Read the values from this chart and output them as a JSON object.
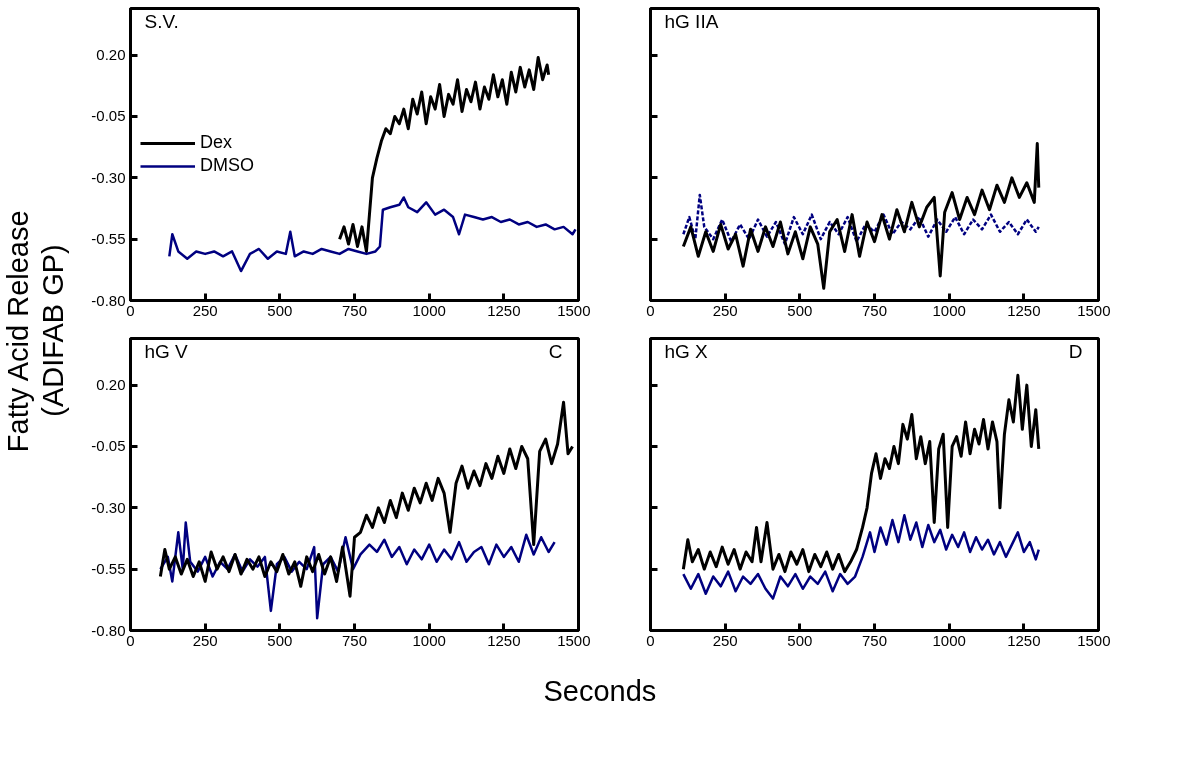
{
  "chart_data": [
    {
      "type": "line",
      "ylabel": "Fatty Acid Release\n(ADIFAB GP)",
      "annotations": [
        "S.V."
      ],
      "legend": "left",
      "grid": false,
      "marker": "none",
      "line_style": "solid",
      "xlim": [
        0,
        1500
      ],
      "xticks": [
        0,
        250,
        500,
        750,
        1000,
        1250,
        1500
      ],
      "ylim": [
        -0.8,
        0.39
      ],
      "yticks": [
        {
          "value": -0.8,
          "label": "-0.80"
        },
        {
          "value": -0.55,
          "label": "-0.55"
        },
        {
          "value": -0.3,
          "label": "-0.30"
        },
        {
          "value": -0.05,
          "label": "-0.05"
        },
        {
          "value": 0.2,
          "label": "0.20"
        }
      ],
      "series": [
        {
          "name": "Dex",
          "color": "#000000",
          "x": [
            700,
            715,
            730,
            745,
            760,
            775,
            790,
            800,
            810,
            825,
            840,
            855,
            870,
            885,
            900,
            915,
            930,
            945,
            960,
            975,
            990,
            1005,
            1020,
            1035,
            1050,
            1065,
            1080,
            1095,
            1110,
            1125,
            1140,
            1155,
            1170,
            1185,
            1200,
            1215,
            1230,
            1245,
            1260,
            1275,
            1290,
            1305,
            1320,
            1335,
            1350,
            1365,
            1380,
            1395,
            1400
          ],
          "values": [
            -0.55,
            -0.5,
            -0.57,
            -0.49,
            -0.58,
            -0.5,
            -0.6,
            -0.45,
            -0.3,
            -0.22,
            -0.15,
            -0.1,
            -0.12,
            -0.05,
            -0.08,
            -0.02,
            -0.1,
            0.02,
            -0.04,
            0.05,
            -0.08,
            0.03,
            -0.02,
            0.08,
            -0.05,
            0.04,
            0.0,
            0.1,
            -0.03,
            0.06,
            0.01,
            0.09,
            -0.02,
            0.07,
            0.02,
            0.12,
            0.03,
            0.1,
            0.0,
            0.13,
            0.05,
            0.15,
            0.07,
            0.14,
            0.06,
            0.19,
            0.1,
            0.16,
            0.12
          ]
        },
        {
          "name": "DMSO",
          "color": "#000080",
          "x": [
            130,
            140,
            160,
            190,
            220,
            250,
            280,
            310,
            340,
            370,
            400,
            430,
            460,
            490,
            520,
            535,
            550,
            580,
            610,
            640,
            670,
            700,
            730,
            760,
            790,
            820,
            835,
            845,
            870,
            900,
            915,
            930,
            960,
            990,
            1020,
            1050,
            1080,
            1100,
            1120,
            1150,
            1180,
            1210,
            1240,
            1270,
            1300,
            1330,
            1360,
            1390,
            1420,
            1450,
            1480,
            1490
          ],
          "values": [
            -0.62,
            -0.53,
            -0.6,
            -0.63,
            -0.6,
            -0.61,
            -0.6,
            -0.62,
            -0.6,
            -0.68,
            -0.61,
            -0.59,
            -0.63,
            -0.6,
            -0.61,
            -0.52,
            -0.62,
            -0.6,
            -0.61,
            -0.59,
            -0.6,
            -0.61,
            -0.59,
            -0.6,
            -0.61,
            -0.6,
            -0.58,
            -0.43,
            -0.42,
            -0.41,
            -0.38,
            -0.42,
            -0.44,
            -0.4,
            -0.45,
            -0.43,
            -0.46,
            -0.53,
            -0.45,
            -0.46,
            -0.47,
            -0.46,
            -0.48,
            -0.47,
            -0.49,
            -0.48,
            -0.5,
            -0.49,
            -0.51,
            -0.5,
            -0.53,
            -0.51
          ]
        }
      ]
    },
    {
      "type": "line",
      "annotations": [
        "hG IIA"
      ],
      "grid": false,
      "marker": "none",
      "tick_labels": "x",
      "xlim": [
        0,
        1500
      ],
      "xticks": [
        0,
        250,
        500,
        750,
        1000,
        1250,
        1500
      ],
      "ylim": [
        -0.8,
        0.39
      ],
      "yticks": [
        {
          "value": -0.8,
          "label": null
        },
        {
          "value": -0.55,
          "label": null
        },
        {
          "value": -0.3,
          "label": null
        },
        {
          "value": -0.05,
          "label": null
        },
        {
          "value": 0.2,
          "label": null
        }
      ],
      "series": [
        {
          "color": "#000080",
          "line_style": "dashed",
          "x": [
            110,
            130,
            150,
            165,
            180,
            210,
            240,
            270,
            300,
            330,
            360,
            390,
            420,
            450,
            480,
            510,
            540,
            570,
            600,
            630,
            660,
            690,
            720,
            750,
            780,
            810,
            840,
            870,
            900,
            930,
            960,
            990,
            1020,
            1050,
            1080,
            1110,
            1140,
            1170,
            1200,
            1230,
            1260,
            1290,
            1300
          ],
          "values": [
            -0.53,
            -0.46,
            -0.55,
            -0.37,
            -0.5,
            -0.55,
            -0.47,
            -0.56,
            -0.49,
            -0.55,
            -0.47,
            -0.54,
            -0.48,
            -0.57,
            -0.46,
            -0.53,
            -0.45,
            -0.55,
            -0.48,
            -0.53,
            -0.46,
            -0.56,
            -0.49,
            -0.52,
            -0.45,
            -0.53,
            -0.48,
            -0.51,
            -0.46,
            -0.54,
            -0.47,
            -0.52,
            -0.46,
            -0.53,
            -0.47,
            -0.51,
            -0.45,
            -0.52,
            -0.48,
            -0.53,
            -0.47,
            -0.52,
            -0.5
          ]
        },
        {
          "color": "#000000",
          "line_style": "solid",
          "x": [
            110,
            135,
            160,
            185,
            210,
            235,
            260,
            285,
            310,
            335,
            360,
            385,
            410,
            435,
            460,
            485,
            510,
            535,
            560,
            580,
            600,
            625,
            650,
            675,
            700,
            725,
            750,
            775,
            800,
            825,
            850,
            875,
            900,
            925,
            950,
            970,
            985,
            1010,
            1035,
            1060,
            1085,
            1110,
            1135,
            1160,
            1185,
            1210,
            1235,
            1260,
            1285,
            1295,
            1300
          ],
          "values": [
            -0.58,
            -0.5,
            -0.62,
            -0.52,
            -0.6,
            -0.49,
            -0.59,
            -0.53,
            -0.66,
            -0.51,
            -0.6,
            -0.5,
            -0.58,
            -0.48,
            -0.61,
            -0.52,
            -0.63,
            -0.5,
            -0.57,
            -0.75,
            -0.52,
            -0.47,
            -0.6,
            -0.45,
            -0.62,
            -0.48,
            -0.56,
            -0.45,
            -0.55,
            -0.43,
            -0.52,
            -0.4,
            -0.5,
            -0.42,
            -0.38,
            -0.7,
            -0.44,
            -0.36,
            -0.47,
            -0.38,
            -0.45,
            -0.35,
            -0.43,
            -0.33,
            -0.4,
            -0.3,
            -0.38,
            -0.32,
            -0.4,
            -0.16,
            -0.34
          ]
        }
      ]
    },
    {
      "type": "line",
      "xlabel": "Seconds",
      "annotations": [
        "hG  V",
        "C"
      ],
      "grid": false,
      "marker": "none",
      "line_style": "solid",
      "xlim": [
        0,
        1500
      ],
      "xticks": [
        0,
        250,
        500,
        750,
        1000,
        1250,
        1500
      ],
      "ylim": [
        -0.8,
        0.39
      ],
      "yticks": [
        {
          "value": -0.8,
          "label": "-0.80"
        },
        {
          "value": -0.55,
          "label": "-0.55"
        },
        {
          "value": -0.3,
          "label": "-0.30"
        },
        {
          "value": -0.05,
          "label": "-0.05"
        },
        {
          "value": 0.2,
          "label": "0.20"
        }
      ],
      "series": [
        {
          "color": "#000080",
          "x": [
            100,
            125,
            140,
            160,
            175,
            185,
            200,
            225,
            250,
            275,
            300,
            325,
            350,
            375,
            400,
            425,
            450,
            470,
            490,
            515,
            540,
            565,
            590,
            615,
            625,
            645,
            670,
            695,
            720,
            745,
            770,
            800,
            825,
            850,
            875,
            900,
            925,
            950,
            975,
            1000,
            1025,
            1050,
            1075,
            1100,
            1125,
            1150,
            1175,
            1200,
            1225,
            1250,
            1275,
            1300,
            1325,
            1350,
            1375,
            1400,
            1420
          ],
          "values": [
            -0.55,
            -0.5,
            -0.6,
            -0.4,
            -0.55,
            -0.36,
            -0.52,
            -0.56,
            -0.5,
            -0.58,
            -0.52,
            -0.55,
            -0.49,
            -0.56,
            -0.51,
            -0.54,
            -0.5,
            -0.72,
            -0.53,
            -0.5,
            -0.56,
            -0.52,
            -0.55,
            -0.46,
            -0.75,
            -0.53,
            -0.5,
            -0.56,
            -0.42,
            -0.55,
            -0.49,
            -0.45,
            -0.48,
            -0.43,
            -0.5,
            -0.46,
            -0.53,
            -0.47,
            -0.51,
            -0.45,
            -0.52,
            -0.47,
            -0.51,
            -0.44,
            -0.52,
            -0.48,
            -0.46,
            -0.53,
            -0.45,
            -0.5,
            -0.46,
            -0.52,
            -0.41,
            -0.49,
            -0.42,
            -0.48,
            -0.44
          ]
        },
        {
          "color": "#000000",
          "x": [
            100,
            115,
            130,
            150,
            170,
            190,
            210,
            230,
            250,
            270,
            290,
            310,
            330,
            350,
            370,
            390,
            410,
            430,
            450,
            470,
            490,
            510,
            530,
            550,
            570,
            590,
            610,
            630,
            650,
            670,
            690,
            710,
            735,
            750,
            770,
            790,
            810,
            830,
            850,
            870,
            890,
            910,
            930,
            950,
            970,
            990,
            1010,
            1030,
            1050,
            1070,
            1090,
            1110,
            1130,
            1150,
            1170,
            1190,
            1210,
            1230,
            1250,
            1270,
            1290,
            1310,
            1330,
            1350,
            1370,
            1390,
            1410,
            1430,
            1450,
            1465,
            1480
          ],
          "values": [
            -0.58,
            -0.47,
            -0.55,
            -0.5,
            -0.57,
            -0.51,
            -0.58,
            -0.52,
            -0.6,
            -0.48,
            -0.55,
            -0.5,
            -0.56,
            -0.49,
            -0.57,
            -0.51,
            -0.55,
            -0.5,
            -0.58,
            -0.52,
            -0.56,
            -0.49,
            -0.57,
            -0.52,
            -0.62,
            -0.5,
            -0.56,
            -0.49,
            -0.57,
            -0.5,
            -0.6,
            -0.46,
            -0.66,
            -0.42,
            -0.4,
            -0.33,
            -0.38,
            -0.3,
            -0.36,
            -0.27,
            -0.34,
            -0.24,
            -0.31,
            -0.22,
            -0.28,
            -0.2,
            -0.27,
            -0.18,
            -0.24,
            -0.4,
            -0.2,
            -0.13,
            -0.22,
            -0.15,
            -0.21,
            -0.12,
            -0.18,
            -0.09,
            -0.16,
            -0.06,
            -0.14,
            -0.05,
            -0.1,
            -0.45,
            -0.07,
            -0.02,
            -0.12,
            -0.04,
            0.13,
            -0.08,
            -0.05
          ]
        }
      ]
    },
    {
      "type": "line",
      "annotations": [
        "hG X",
        "D"
      ],
      "grid": false,
      "marker": "none",
      "line_style": "solid",
      "tick_labels": "x",
      "xlim": [
        0,
        1500
      ],
      "xticks": [
        0,
        250,
        500,
        750,
        1000,
        1250,
        1500
      ],
      "ylim": [
        -0.8,
        0.39
      ],
      "yticks": [
        {
          "value": -0.8,
          "label": null
        },
        {
          "value": -0.55,
          "label": null
        },
        {
          "value": -0.3,
          "label": null
        },
        {
          "value": -0.05,
          "label": null
        },
        {
          "value": 0.2,
          "label": null
        }
      ],
      "series": [
        {
          "color": "#000080",
          "x": [
            110,
            135,
            160,
            185,
            210,
            235,
            260,
            285,
            310,
            335,
            360,
            385,
            410,
            435,
            460,
            485,
            510,
            535,
            560,
            585,
            610,
            635,
            660,
            685,
            710,
            735,
            750,
            770,
            790,
            810,
            830,
            850,
            870,
            890,
            910,
            930,
            950,
            970,
            990,
            1010,
            1030,
            1050,
            1070,
            1090,
            1110,
            1130,
            1150,
            1170,
            1190,
            1210,
            1230,
            1250,
            1270,
            1290,
            1300
          ],
          "values": [
            -0.57,
            -0.63,
            -0.57,
            -0.65,
            -0.58,
            -0.62,
            -0.56,
            -0.64,
            -0.58,
            -0.61,
            -0.57,
            -0.63,
            -0.67,
            -0.58,
            -0.62,
            -0.57,
            -0.63,
            -0.58,
            -0.61,
            -0.56,
            -0.64,
            -0.57,
            -0.61,
            -0.58,
            -0.5,
            -0.4,
            -0.48,
            -0.38,
            -0.45,
            -0.35,
            -0.44,
            -0.33,
            -0.43,
            -0.36,
            -0.46,
            -0.37,
            -0.44,
            -0.39,
            -0.47,
            -0.41,
            -0.46,
            -0.4,
            -0.48,
            -0.42,
            -0.47,
            -0.43,
            -0.49,
            -0.44,
            -0.5,
            -0.45,
            -0.4,
            -0.48,
            -0.44,
            -0.51,
            -0.47
          ]
        },
        {
          "color": "#000000",
          "x": [
            110,
            125,
            140,
            160,
            180,
            200,
            220,
            240,
            260,
            280,
            300,
            320,
            340,
            355,
            370,
            390,
            410,
            430,
            450,
            470,
            490,
            510,
            530,
            550,
            570,
            590,
            610,
            630,
            650,
            670,
            690,
            710,
            725,
            740,
            755,
            770,
            785,
            800,
            815,
            830,
            845,
            860,
            875,
            890,
            905,
            920,
            935,
            950,
            965,
            980,
            995,
            1010,
            1025,
            1040,
            1055,
            1070,
            1085,
            1100,
            1115,
            1130,
            1145,
            1160,
            1170,
            1185,
            1200,
            1215,
            1230,
            1245,
            1260,
            1275,
            1290,
            1300
          ],
          "values": [
            -0.55,
            -0.43,
            -0.52,
            -0.47,
            -0.55,
            -0.48,
            -0.54,
            -0.46,
            -0.53,
            -0.47,
            -0.55,
            -0.48,
            -0.52,
            -0.38,
            -0.52,
            -0.36,
            -0.55,
            -0.49,
            -0.56,
            -0.48,
            -0.53,
            -0.47,
            -0.56,
            -0.49,
            -0.54,
            -0.48,
            -0.55,
            -0.49,
            -0.56,
            -0.52,
            -0.47,
            -0.38,
            -0.3,
            -0.16,
            -0.08,
            -0.18,
            -0.1,
            -0.14,
            -0.05,
            -0.12,
            0.04,
            -0.02,
            0.08,
            -0.1,
            -0.01,
            -0.12,
            -0.03,
            -0.36,
            -0.06,
            0.0,
            -0.38,
            -0.05,
            -0.01,
            -0.09,
            0.05,
            -0.08,
            0.02,
            -0.04,
            0.06,
            -0.06,
            0.05,
            -0.03,
            -0.3,
            0.0,
            0.14,
            0.05,
            0.24,
            0.02,
            0.2,
            -0.05,
            0.1,
            -0.06
          ]
        }
      ]
    }
  ]
}
